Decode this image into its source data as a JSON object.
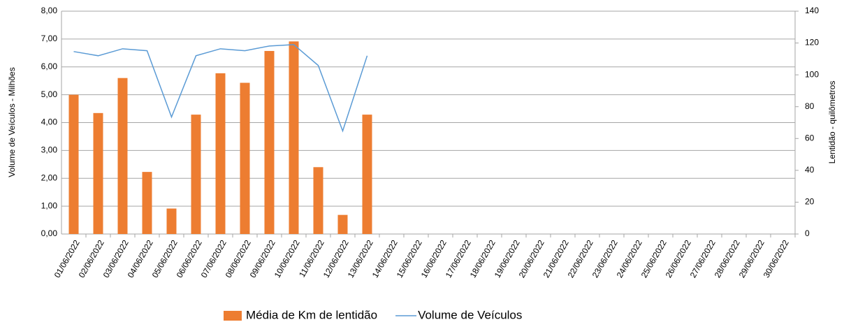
{
  "chart_data": {
    "type": "bar",
    "y_label": "Volume de Veículos  - Milhões",
    "y2_label": "Lentidão - quilômetros",
    "categories": [
      "01/06/2022",
      "02/06/2022",
      "03/06/2022",
      "04/06/2022",
      "05/06/2022",
      "06/06/2022",
      "07/06/2022",
      "08/06/2022",
      "09/06/2022",
      "10/06/2022",
      "11/06/2022",
      "12/06/2022",
      "13/06/2022",
      "14/06/2022",
      "15/06/2022",
      "16/06/2022",
      "17/06/2022",
      "18/06/2022",
      "19/06/2022",
      "20/06/2022",
      "21/06/2022",
      "22/06/2022",
      "23/06/2022",
      "24/06/2022",
      "25/06/2022",
      "26/06/2022",
      "27/06/2022",
      "28/06/2022",
      "29/06/2022",
      "30/06/2022"
    ],
    "series": [
      {
        "name": "Média de Km de lentidão",
        "type": "bar",
        "axis": "y2",
        "color": "#ed7d31",
        "values": [
          87.5,
          76,
          98,
          39,
          16,
          75,
          101,
          95,
          115,
          121,
          42,
          12,
          75,
          null,
          null,
          null,
          null,
          null,
          null,
          null,
          null,
          null,
          null,
          null,
          null,
          null,
          null,
          null,
          null,
          null
        ]
      },
      {
        "name": "Volume de Veículos",
        "type": "line",
        "color": "#5b9bd5",
        "values": [
          6.55,
          6.4,
          6.65,
          6.58,
          4.2,
          6.4,
          6.65,
          6.58,
          6.75,
          6.8,
          6.05,
          3.7,
          6.4,
          null,
          null,
          null,
          null,
          null,
          null,
          null,
          null,
          null,
          null,
          null,
          null,
          null,
          null,
          null,
          null,
          null
        ]
      }
    ],
    "ylim": [
      0,
      8
    ],
    "yticks": [
      {
        "value": 0,
        "label": "0,00"
      },
      {
        "value": 1,
        "label": "1,00"
      },
      {
        "value": 2,
        "label": "2,00"
      },
      {
        "value": 3,
        "label": "3,00"
      },
      {
        "value": 4,
        "label": "4,00"
      },
      {
        "value": 5,
        "label": "5,00"
      },
      {
        "value": 6,
        "label": "6,00"
      },
      {
        "value": 7,
        "label": "7,00"
      },
      {
        "value": 8,
        "label": "8,00"
      }
    ],
    "y2lim": [
      0,
      140
    ],
    "y2ticks": [
      0,
      20,
      40,
      60,
      80,
      100,
      120,
      140
    ],
    "grid": true,
    "legend": "bottom"
  }
}
